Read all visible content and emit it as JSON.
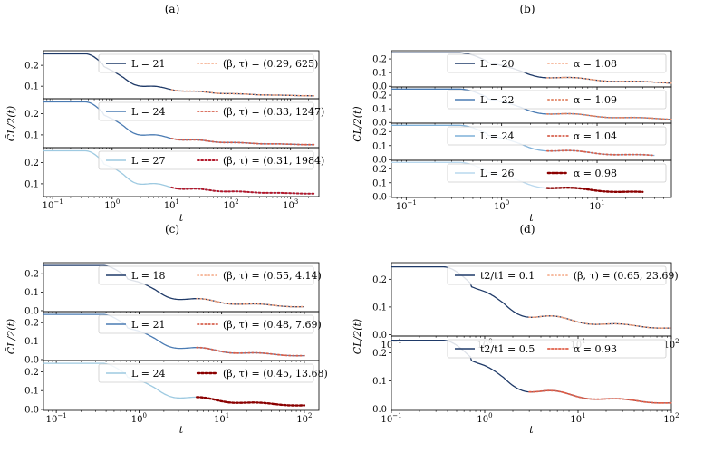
{
  "figure": {
    "background": "#ffffff"
  },
  "chart_data": [
    {
      "id": "a",
      "label": "(a)",
      "type": "line",
      "xscale": "log",
      "xlim": [
        0.07,
        3000
      ],
      "xticks": [
        {
          "v": 0.1,
          "base": "10",
          "exp": "−1"
        },
        {
          "v": 1,
          "base": "10",
          "exp": "0"
        },
        {
          "v": 10,
          "base": "10",
          "exp": "1"
        },
        {
          "v": 100,
          "base": "10",
          "exp": "2"
        },
        {
          "v": 1000,
          "base": "10",
          "exp": "3"
        }
      ],
      "xlabel": "t",
      "ylabel": "C̃L/2(t)",
      "legend_loc": "upper right",
      "subplots": [
        {
          "ylim": [
            0.04,
            0.27
          ],
          "yticks": [
            "0.2",
            "0.1"
          ],
          "ytick_values": [
            0.2,
            0.1
          ],
          "series": {
            "name": "L = 21",
            "color": "#1f3a68",
            "start": 0.255,
            "osc": 0.012,
            "end": 0.05,
            "xmax": 2500
          },
          "fit": {
            "label": "(β, τ) = (0.29, 625)",
            "color": "#f4a582",
            "x0": 10,
            "x1": 2500,
            "style": "1.2,2.8",
            "width": 1.6
          }
        },
        {
          "ylim": [
            0.04,
            0.27
          ],
          "yticks": [
            "0.2",
            "0.1"
          ],
          "ytick_values": [
            0.2,
            0.1
          ],
          "series": {
            "name": "L = 24",
            "color": "#4a7bb3",
            "start": 0.255,
            "osc": 0.014,
            "end": 0.05,
            "xmax": 2500
          },
          "fit": {
            "label": "(β, τ) = (0.33, 1247)",
            "color": "#d6604d",
            "x0": 10,
            "x1": 2500,
            "style": "1.5,2.6",
            "width": 1.8
          }
        },
        {
          "ylim": [
            0.04,
            0.27
          ],
          "yticks": [
            "0.2",
            "0.1"
          ],
          "ytick_values": [
            0.2,
            0.1
          ],
          "series": {
            "name": "L = 27",
            "color": "#9ecae1",
            "start": 0.255,
            "osc": 0.016,
            "end": 0.05,
            "xmax": 2500
          },
          "fit": {
            "label": "(β, τ) = (0.31, 1984)",
            "color": "#b2182b",
            "x0": 10,
            "x1": 2500,
            "style": "1.8,2.4",
            "width": 2.0
          }
        }
      ]
    },
    {
      "id": "b",
      "label": "(b)",
      "type": "line",
      "xscale": "log",
      "xlim": [
        0.07,
        60
      ],
      "xticks": [
        {
          "v": 0.1,
          "base": "10",
          "exp": "−1"
        },
        {
          "v": 1,
          "base": "10",
          "exp": "0"
        },
        {
          "v": 10,
          "base": "10",
          "exp": "1"
        }
      ],
      "xlabel": "t",
      "ylabel": "C̃L/2(t)",
      "legend_loc": "upper right",
      "subplots": [
        {
          "ylim": [
            -0.005,
            0.26
          ],
          "yticks": [
            "0.2",
            "0.1",
            "0.0"
          ],
          "ytick_values": [
            0.2,
            0.1,
            0.0
          ],
          "series": {
            "name": "L = 20",
            "color": "#1f3a68",
            "start": 0.245,
            "osc": 0.018,
            "end": 0.005,
            "xmax": 60
          },
          "fit": {
            "label": "α = 1.08",
            "color": "#f4a582",
            "x0": 3,
            "x1": 60,
            "style": "1.2,2.8",
            "width": 1.6
          }
        },
        {
          "ylim": [
            -0.005,
            0.26
          ],
          "yticks": [
            "0.2",
            "0.1",
            "0.0"
          ],
          "ytick_values": [
            0.2,
            0.1,
            0.0
          ],
          "series": {
            "name": "L = 22",
            "color": "#4a7bb3",
            "start": 0.245,
            "osc": 0.018,
            "end": 0.005,
            "xmax": 60
          },
          "fit": {
            "label": "α = 1.09",
            "color": "#e08060",
            "x0": 3,
            "x1": 60,
            "style": "1.3,2.7",
            "width": 1.7
          }
        },
        {
          "ylim": [
            -0.005,
            0.26
          ],
          "yticks": [
            "0.2",
            "0.1",
            "0.0"
          ],
          "ytick_values": [
            0.2,
            0.1,
            0.0
          ],
          "series": {
            "name": "L = 24",
            "color": "#7fb0d8",
            "start": 0.245,
            "osc": 0.018,
            "end": 0.005,
            "xmax": 40
          },
          "fit": {
            "label": "α = 1.04",
            "color": "#d6604d",
            "x0": 3,
            "x1": 40,
            "style": "1.5,2.6",
            "width": 1.8
          }
        },
        {
          "ylim": [
            -0.005,
            0.26
          ],
          "yticks": [
            "0.2",
            "0.1",
            "0.0"
          ],
          "ytick_values": [
            0.2,
            0.1,
            0.0
          ],
          "series": {
            "name": "L = 26",
            "color": "#b9d8ee",
            "start": 0.245,
            "osc": 0.018,
            "end": 0.005,
            "xmax": 30
          },
          "fit": {
            "label": "α = 0.98",
            "color": "#8b0000",
            "x0": 3,
            "x1": 30,
            "style": "2.2,2.2",
            "width": 2.4
          }
        }
      ]
    },
    {
      "id": "c",
      "label": "(c)",
      "type": "line",
      "xscale": "log",
      "xlim": [
        0.07,
        150
      ],
      "xticks": [
        {
          "v": 0.1,
          "base": "10",
          "exp": "−1"
        },
        {
          "v": 1,
          "base": "10",
          "exp": "0"
        },
        {
          "v": 10,
          "base": "10",
          "exp": "1"
        },
        {
          "v": 100,
          "base": "10",
          "exp": "2"
        }
      ],
      "xlabel": "t",
      "ylabel": "C̃L/2(t)",
      "legend_loc": "upper right",
      "subplots": [
        {
          "ylim": [
            -0.005,
            0.26
          ],
          "yticks": [
            "0.2",
            "0.1",
            "0.0"
          ],
          "ytick_values": [
            0.2,
            0.1,
            0.0
          ],
          "series": {
            "name": "L = 18",
            "color": "#1f3a68",
            "start": 0.245,
            "osc": 0.02,
            "end": 0.005,
            "xmax": 100
          },
          "fit": {
            "label": "(β, τ) = (0.55, 4.14)",
            "color": "#f4a582",
            "x0": 5,
            "x1": 100,
            "style": "1.2,2.8",
            "width": 1.6
          }
        },
        {
          "ylim": [
            -0.005,
            0.26
          ],
          "yticks": [
            "0.2",
            "0.1",
            "0.0"
          ],
          "ytick_values": [
            0.2,
            0.1,
            0.0
          ],
          "series": {
            "name": "L = 21",
            "color": "#4a7bb3",
            "start": 0.245,
            "osc": 0.02,
            "end": 0.005,
            "xmax": 100
          },
          "fit": {
            "label": "(β, τ) = (0.48, 7.69)",
            "color": "#d6604d",
            "x0": 5,
            "x1": 100,
            "style": "1.5,2.6",
            "width": 1.8
          }
        },
        {
          "ylim": [
            -0.005,
            0.26
          ],
          "yticks": [
            "0.2",
            "0.1",
            "0.0"
          ],
          "ytick_values": [
            0.2,
            0.1,
            0.0
          ],
          "series": {
            "name": "L = 24",
            "color": "#9ecae1",
            "start": 0.245,
            "osc": 0.02,
            "end": 0.005,
            "xmax": 100
          },
          "fit": {
            "label": "(β, τ) = (0.45, 13.68)",
            "color": "#8b0000",
            "x0": 5,
            "x1": 100,
            "style": "2.2,2.2",
            "width": 2.4
          }
        }
      ]
    },
    {
      "id": "d",
      "label": "(d)",
      "type": "line",
      "xscale": "log",
      "xlim": [
        0.1,
        100
      ],
      "xticks": [
        {
          "v": 0.1,
          "base": "10",
          "exp": "−1"
        },
        {
          "v": 1,
          "base": "10",
          "exp": "0"
        },
        {
          "v": 10,
          "base": "10",
          "exp": "1"
        },
        {
          "v": 100,
          "base": "10",
          "exp": "2"
        }
      ],
      "xlabel": "t",
      "ylabel": "C̃L/2(t)",
      "legend_loc": "upper right",
      "subplots": [
        {
          "ylim": [
            -0.005,
            0.26
          ],
          "yticks": [
            "0.2",
            "0.1",
            "0.0"
          ],
          "ytick_values": [
            0.2,
            0.1,
            0.0
          ],
          "series": {
            "name": "t2/t1 = 0.1",
            "color": "#1f3a68",
            "start": 0.245,
            "osc": 0.02,
            "end": 0.008,
            "xmax": 100
          },
          "fit": {
            "label": "(β, τ) = (0.65, 23.69)",
            "color": "#f4a582",
            "x0": 3,
            "x1": 100,
            "style": "1.2,2.8",
            "width": 1.6
          }
        },
        {
          "ylim": [
            -0.005,
            0.26
          ],
          "yticks": [
            "0.2",
            "0.1",
            "0.0"
          ],
          "ytick_values": [
            0.2,
            0.1,
            0.0
          ],
          "series": {
            "name": "t2/t1 = 0.5",
            "color": "#1f3a68",
            "start": 0.245,
            "osc": 0.02,
            "end": 0.005,
            "xmax": 100
          },
          "fit": {
            "label": "α = 0.93",
            "color": "#e0604a",
            "x0": 3,
            "x1": 100,
            "style": "2,2",
            "width": 1.8
          }
        }
      ]
    }
  ]
}
